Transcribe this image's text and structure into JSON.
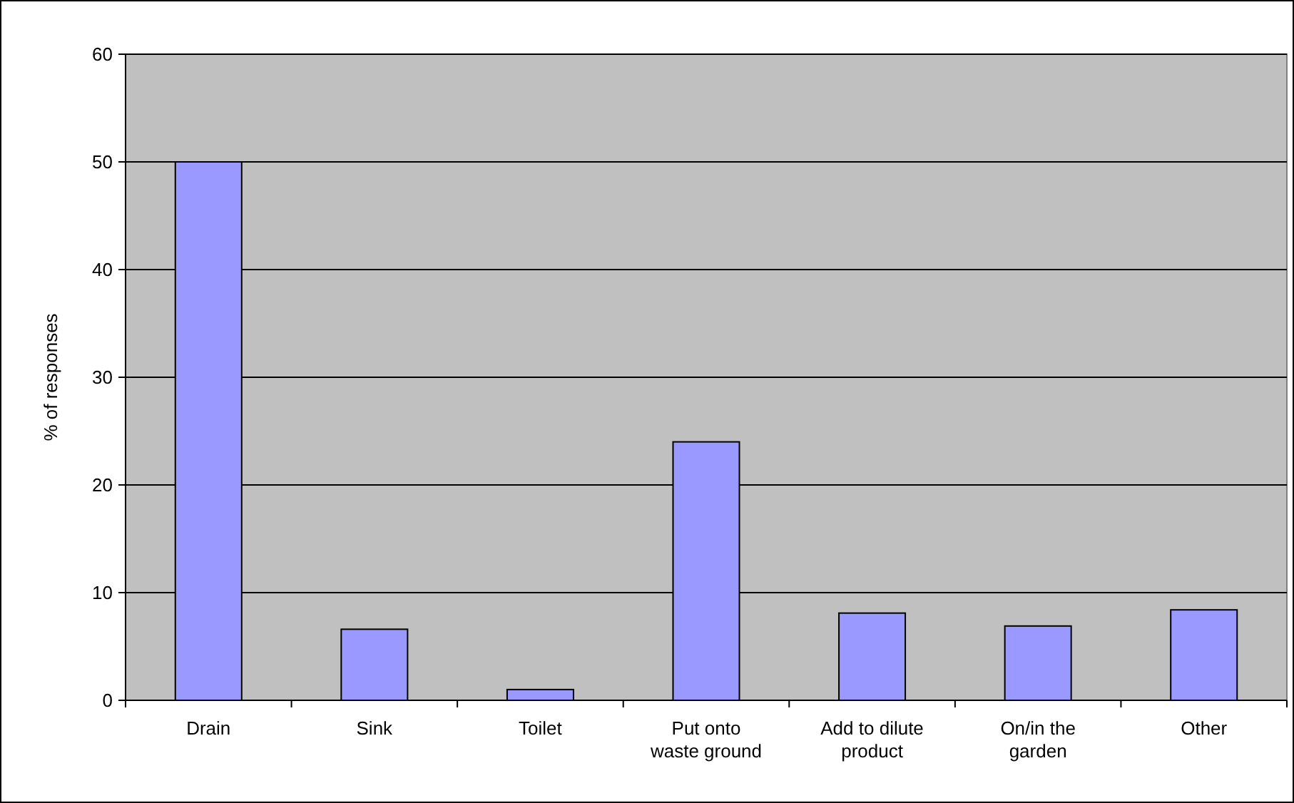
{
  "chart_data": {
    "type": "bar",
    "ylabel": "% of responses",
    "categories": [
      "Drain",
      "Sink",
      "Toilet",
      "Put onto waste ground",
      "Add to dilute product",
      "On/in the garden",
      "Other"
    ],
    "values": [
      50,
      6.6,
      1,
      24,
      8.1,
      6.9,
      8.4
    ],
    "color": "#9999ff",
    "ylim": [
      0,
      60
    ],
    "yticks": [
      0,
      10,
      20,
      30,
      40,
      50,
      60
    ],
    "grid": "y"
  }
}
